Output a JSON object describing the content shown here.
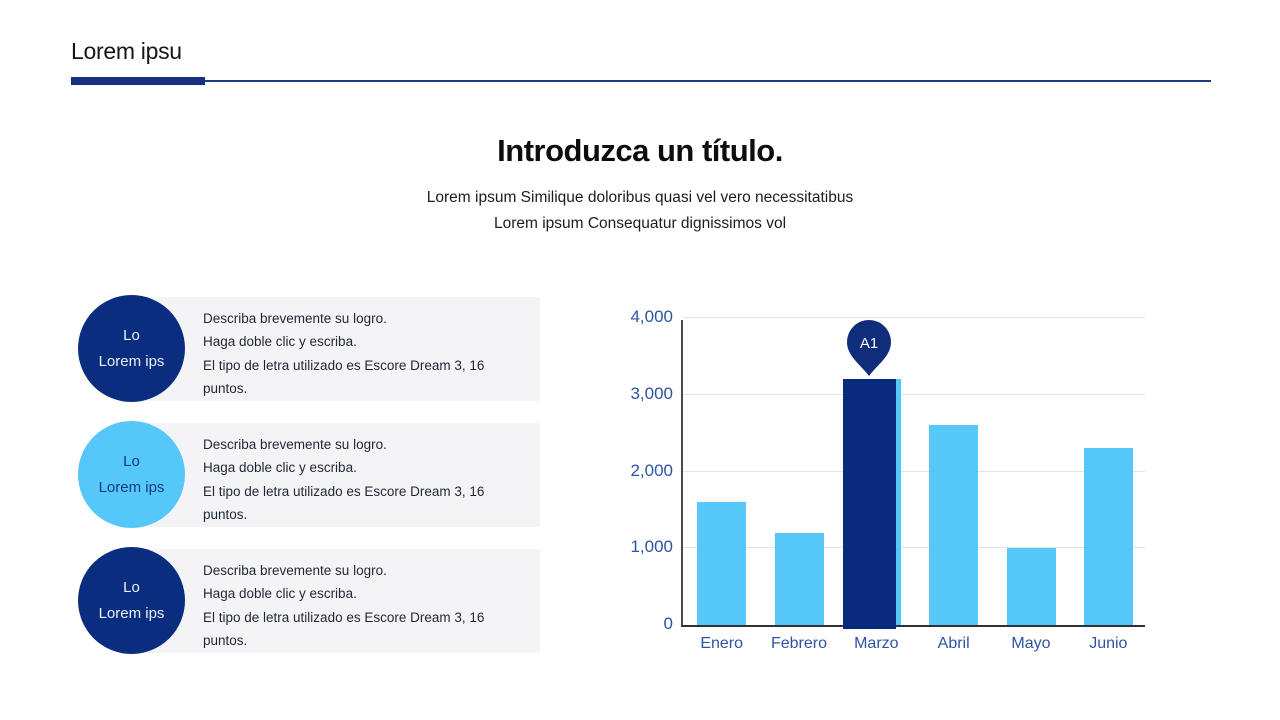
{
  "header": {
    "title": "Lorem ipsu"
  },
  "hero": {
    "title": "Introduzca un título.",
    "subtitle_lines": [
      "Lorem ipsum Similique doloribus quasi vel vero necessitatibus",
      "Lorem ipsum Consequatur dignissimos vol"
    ]
  },
  "features": {
    "items": [
      {
        "style": "dark",
        "circle_line1": "Lo",
        "circle_line2": "Lorem ips",
        "desc_lines": [
          "Describa brevemente su logro.",
          "Haga doble clic y escriba.",
          "El tipo de letra utilizado es Escore Dream 3, 16",
          "puntos."
        ]
      },
      {
        "style": "light",
        "circle_line1": "Lo",
        "circle_line2": "Lorem ips",
        "desc_lines": [
          "Describa brevemente su logro.",
          "Haga doble clic y escriba.",
          "El tipo de letra utilizado es Escore Dream 3, 16",
          "puntos."
        ]
      },
      {
        "style": "dark",
        "circle_line1": "Lo",
        "circle_line2": "Lorem ips",
        "desc_lines": [
          "Describa brevemente su logro.",
          "Haga doble clic y escriba.",
          "El tipo de letra utilizado es Escore Dream 3, 16",
          "puntos."
        ]
      }
    ]
  },
  "chart_data": {
    "type": "bar",
    "title": "",
    "categories": [
      "Enero",
      "Febrero",
      "Marzo",
      "Abril",
      "Mayo",
      "Junio"
    ],
    "values": [
      1600,
      1200,
      3200,
      2600,
      1000,
      2300
    ],
    "highlight": {
      "index": 2,
      "category": "Marzo",
      "annotation_label": "A1"
    },
    "y_ticks": [
      0,
      1000,
      2000,
      3000,
      4000
    ],
    "y_tick_labels": [
      "0",
      "1,000",
      "2,000",
      "3,000",
      "4,000"
    ],
    "ylim": [
      0,
      4000
    ],
    "xlabel": "",
    "ylabel": "",
    "grid": true,
    "legend": false,
    "colors": {
      "bar": "#55c7f8",
      "highlight_bar": "#0a2b7d",
      "axis_text": "#2d54a3"
    }
  },
  "colors": {
    "accent_dark": "#0b2d80",
    "accent_light": "#55c7f8",
    "rule_navy": "#15317d",
    "panel_gray": "#f4f4f6",
    "body_text": "#1f2735"
  }
}
